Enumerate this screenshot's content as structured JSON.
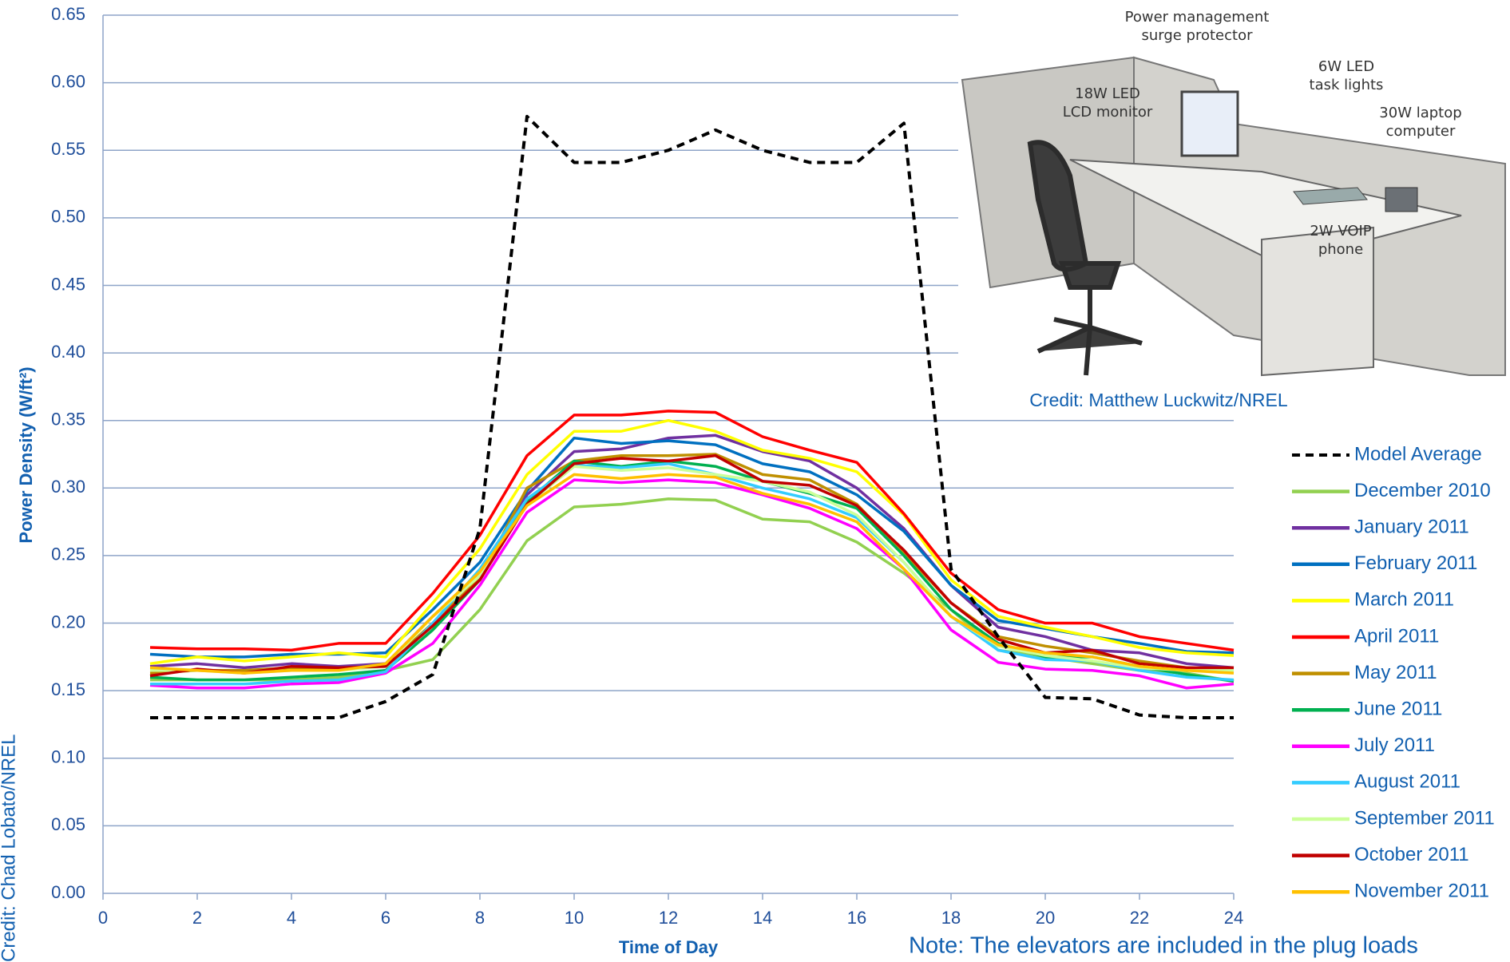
{
  "chart_data": {
    "type": "line",
    "x": [
      1,
      2,
      3,
      4,
      5,
      6,
      7,
      8,
      9,
      10,
      11,
      12,
      13,
      14,
      15,
      16,
      17,
      18,
      19,
      20,
      21,
      22,
      23,
      24
    ],
    "xlim": [
      0,
      24
    ],
    "xticks": [
      0,
      2,
      4,
      6,
      8,
      10,
      12,
      14,
      16,
      18,
      20,
      22,
      24
    ],
    "ylim": [
      0,
      0.65
    ],
    "yticks": [
      {
        "value": 0,
        "label": "0.00"
      },
      0.05,
      {
        "value": 0.1,
        "label": "0.10"
      },
      0.15,
      {
        "value": 0.2,
        "label": "0.20"
      },
      0.25,
      {
        "value": 0.3,
        "label": "0.30"
      },
      0.35,
      {
        "value": 0.4,
        "label": "0.40"
      },
      0.45,
      {
        "value": 0.5,
        "label": "0.50"
      },
      0.55,
      {
        "value": 0.6,
        "label": "0.60"
      },
      0.65
    ],
    "grid": true,
    "legend": "right",
    "ylabel": "Power Density (W/ft²)",
    "xlabel": "Time of Day",
    "annotations": [
      "Note: The elevators are included in the plug loads",
      "Credit: Chad Lobato/NREL",
      "Credit: Matthew Luckwitz/NREL"
    ],
    "series": [
      {
        "name": "Model Average",
        "color": "#000000",
        "dashed": true,
        "values": [
          0.13,
          0.13,
          0.13,
          0.13,
          0.13,
          0.142,
          0.162,
          0.27,
          0.575,
          0.541,
          0.541,
          0.55,
          0.565,
          0.55,
          0.541,
          0.541,
          0.57,
          0.24,
          0.19,
          0.145,
          0.144,
          0.132,
          0.13,
          0.13
        ]
      },
      {
        "name": "December 2010",
        "color": "#92d050",
        "values": [
          0.158,
          0.158,
          0.158,
          0.158,
          0.16,
          0.165,
          0.173,
          0.21,
          0.261,
          0.286,
          0.288,
          0.292,
          0.291,
          0.277,
          0.275,
          0.26,
          0.237,
          0.21,
          0.18,
          0.175,
          0.17,
          0.165,
          0.163,
          0.157
        ]
      },
      {
        "name": "January 2011",
        "color": "#7030a0",
        "values": [
          0.168,
          0.17,
          0.167,
          0.17,
          0.168,
          0.17,
          0.205,
          0.235,
          0.295,
          0.327,
          0.329,
          0.337,
          0.339,
          0.327,
          0.32,
          0.3,
          0.27,
          0.228,
          0.197,
          0.19,
          0.18,
          0.178,
          0.17,
          0.167
        ]
      },
      {
        "name": "February 2011",
        "color": "#0070c0",
        "values": [
          0.177,
          0.175,
          0.175,
          0.177,
          0.177,
          0.178,
          0.21,
          0.245,
          0.298,
          0.337,
          0.333,
          0.335,
          0.332,
          0.318,
          0.312,
          0.295,
          0.268,
          0.228,
          0.202,
          0.196,
          0.19,
          0.185,
          0.179,
          0.178
        ]
      },
      {
        "name": "March 2011",
        "color": "#ffff00",
        "values": [
          0.17,
          0.175,
          0.172,
          0.175,
          0.178,
          0.175,
          0.215,
          0.255,
          0.31,
          0.342,
          0.342,
          0.35,
          0.342,
          0.328,
          0.322,
          0.312,
          0.28,
          0.232,
          0.205,
          0.197,
          0.19,
          0.182,
          0.178,
          0.176
        ]
      },
      {
        "name": "April 2011",
        "color": "#ff0000",
        "values": [
          0.182,
          0.181,
          0.181,
          0.18,
          0.185,
          0.185,
          0.222,
          0.265,
          0.324,
          0.354,
          0.354,
          0.357,
          0.356,
          0.338,
          0.328,
          0.319,
          0.281,
          0.237,
          0.21,
          0.2,
          0.2,
          0.19,
          0.185,
          0.18
        ]
      },
      {
        "name": "May 2011",
        "color": "#bf8f00",
        "values": [
          0.163,
          0.165,
          0.165,
          0.167,
          0.166,
          0.168,
          0.2,
          0.233,
          0.3,
          0.32,
          0.324,
          0.324,
          0.325,
          0.31,
          0.306,
          0.288,
          0.252,
          0.215,
          0.19,
          0.183,
          0.178,
          0.172,
          0.167,
          0.166
        ]
      },
      {
        "name": "June 2011",
        "color": "#00b050",
        "values": [
          0.16,
          0.158,
          0.158,
          0.16,
          0.162,
          0.165,
          0.195,
          0.232,
          0.29,
          0.32,
          0.316,
          0.32,
          0.316,
          0.305,
          0.296,
          0.285,
          0.25,
          0.21,
          0.185,
          0.175,
          0.175,
          0.168,
          0.162,
          0.157
        ]
      },
      {
        "name": "July 2011",
        "color": "#ff00ff",
        "values": [
          0.154,
          0.152,
          0.152,
          0.155,
          0.156,
          0.163,
          0.185,
          0.228,
          0.282,
          0.306,
          0.304,
          0.306,
          0.304,
          0.295,
          0.285,
          0.27,
          0.24,
          0.195,
          0.171,
          0.166,
          0.165,
          0.161,
          0.152,
          0.155
        ]
      },
      {
        "name": "August 2011",
        "color": "#33ccff",
        "values": [
          0.155,
          0.155,
          0.155,
          0.157,
          0.158,
          0.164,
          0.2,
          0.24,
          0.292,
          0.317,
          0.315,
          0.318,
          0.31,
          0.3,
          0.292,
          0.278,
          0.245,
          0.205,
          0.18,
          0.173,
          0.172,
          0.165,
          0.16,
          0.158
        ]
      },
      {
        "name": "September 2011",
        "color": "#ccff99",
        "values": [
          0.165,
          0.165,
          0.163,
          0.165,
          0.165,
          0.168,
          0.205,
          0.235,
          0.288,
          0.316,
          0.313,
          0.315,
          0.31,
          0.305,
          0.297,
          0.28,
          0.245,
          0.205,
          0.183,
          0.176,
          0.172,
          0.167,
          0.165,
          0.165
        ]
      },
      {
        "name": "October 2011",
        "color": "#c00000",
        "values": [
          0.161,
          0.166,
          0.163,
          0.168,
          0.167,
          0.168,
          0.198,
          0.232,
          0.288,
          0.318,
          0.322,
          0.32,
          0.324,
          0.305,
          0.302,
          0.287,
          0.254,
          0.215,
          0.188,
          0.178,
          0.18,
          0.17,
          0.167,
          0.167
        ]
      },
      {
        "name": "November 2011",
        "color": "#ffc000",
        "values": [
          0.167,
          0.165,
          0.163,
          0.165,
          0.165,
          0.17,
          0.205,
          0.238,
          0.287,
          0.31,
          0.307,
          0.31,
          0.308,
          0.296,
          0.288,
          0.275,
          0.24,
          0.205,
          0.184,
          0.178,
          0.175,
          0.168,
          0.165,
          0.163
        ]
      }
    ]
  },
  "illustration": {
    "labels": [
      [
        "Power management",
        "surge protector"
      ],
      [
        "18W LED",
        "LCD monitor"
      ],
      [
        "6W LED",
        "task lights"
      ],
      [
        "30W laptop",
        "computer"
      ],
      [
        "2W VOIP",
        "phone"
      ]
    ]
  }
}
